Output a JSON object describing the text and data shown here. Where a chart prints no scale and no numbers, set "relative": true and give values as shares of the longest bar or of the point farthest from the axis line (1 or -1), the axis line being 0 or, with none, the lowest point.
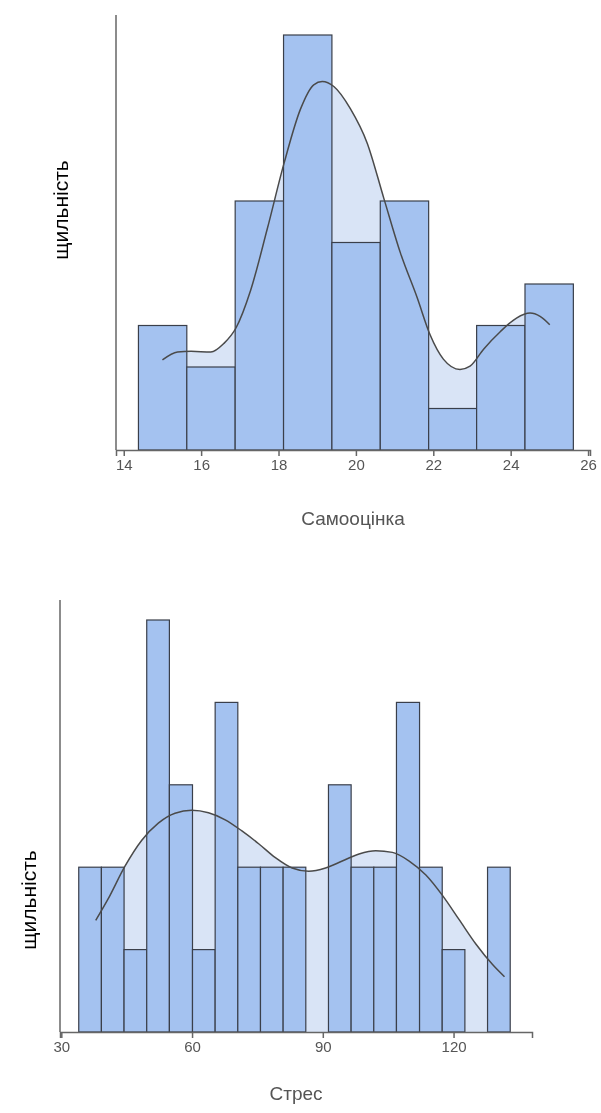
{
  "chart_data": [
    {
      "type": "histogram",
      "relative": true,
      "xlabel": "Самооцінка",
      "ylabel": "щильність",
      "xlim": [
        13.8,
        26.05
      ],
      "xticks": [
        14,
        16,
        18,
        20,
        22,
        24,
        26
      ],
      "series": [
        {
          "type": "area",
          "color": "#d9e4f6",
          "x": [
            15.0,
            15.39,
            15.74,
            16.25,
            16.59,
            16.9,
            17.28,
            17.71,
            18.14,
            18.57,
            18.91,
            19.13,
            19.43,
            19.86,
            20.29,
            20.72,
            21.15,
            21.58,
            21.92,
            22.26,
            22.69,
            22.95,
            23.3,
            23.73,
            24.15,
            24.5,
            24.76,
            25.01
          ],
          "values": [
            0.217,
            0.236,
            0.238,
            0.236,
            0.257,
            0.294,
            0.385,
            0.533,
            0.69,
            0.822,
            0.88,
            0.888,
            0.876,
            0.822,
            0.74,
            0.607,
            0.475,
            0.368,
            0.277,
            0.219,
            0.194,
            0.202,
            0.243,
            0.285,
            0.318,
            0.33,
            0.322,
            0.302
          ]
        },
        {
          "color": "#a4c2f0",
          "bins": [
            14.38,
            15.63,
            16.88,
            18.13,
            19.38,
            20.63,
            21.88,
            23.12,
            24.37,
            25.62
          ],
          "values": [
            0.3,
            0.2,
            0.6,
            1,
            0.5,
            0.6,
            0.1,
            0.3,
            0.4
          ]
        }
      ]
    },
    {
      "type": "histogram",
      "relative": true,
      "xlabel": "Стрес",
      "ylabel": "щильність",
      "xlim": [
        29.7,
        138
      ],
      "xticks": [
        30,
        60,
        90,
        120
      ],
      "series": [
        {
          "type": "area",
          "color": "#d9e4f6",
          "x": [
            37.9,
            40.74,
            44.58,
            48.42,
            52.26,
            56.09,
            59.93,
            63.77,
            67.61,
            71.44,
            75.28,
            79.12,
            82.96,
            86.79,
            90.63,
            94.47,
            98.31,
            102.14,
            105.98,
            109.82,
            113.65,
            117.49,
            121.33,
            125.16,
            129.0,
            131.69
          ],
          "values": [
            0.271,
            0.323,
            0.402,
            0.465,
            0.507,
            0.531,
            0.538,
            0.532,
            0.515,
            0.488,
            0.457,
            0.423,
            0.398,
            0.39,
            0.398,
            0.415,
            0.432,
            0.44,
            0.436,
            0.415,
            0.381,
            0.331,
            0.272,
            0.213,
            0.163,
            0.134
          ]
        },
        {
          "color": "#a4c2f0",
          "bins": [
            34.0,
            39.2,
            44.4,
            49.6,
            54.8,
            60.1,
            65.3,
            70.5,
            75.7,
            80.9,
            86.1,
            91.3,
            96.5,
            101.7,
            106.9,
            112.2,
            117.4,
            122.6,
            127.8,
            133.0
          ],
          "values": [
            0.4,
            0.4,
            0.2,
            1,
            0.6,
            0.2,
            0.8,
            0.4,
            0.4,
            0.4,
            0,
            0.6,
            0.4,
            0.4,
            0.8,
            0.4,
            0.2,
            0,
            0.4
          ]
        }
      ]
    }
  ]
}
